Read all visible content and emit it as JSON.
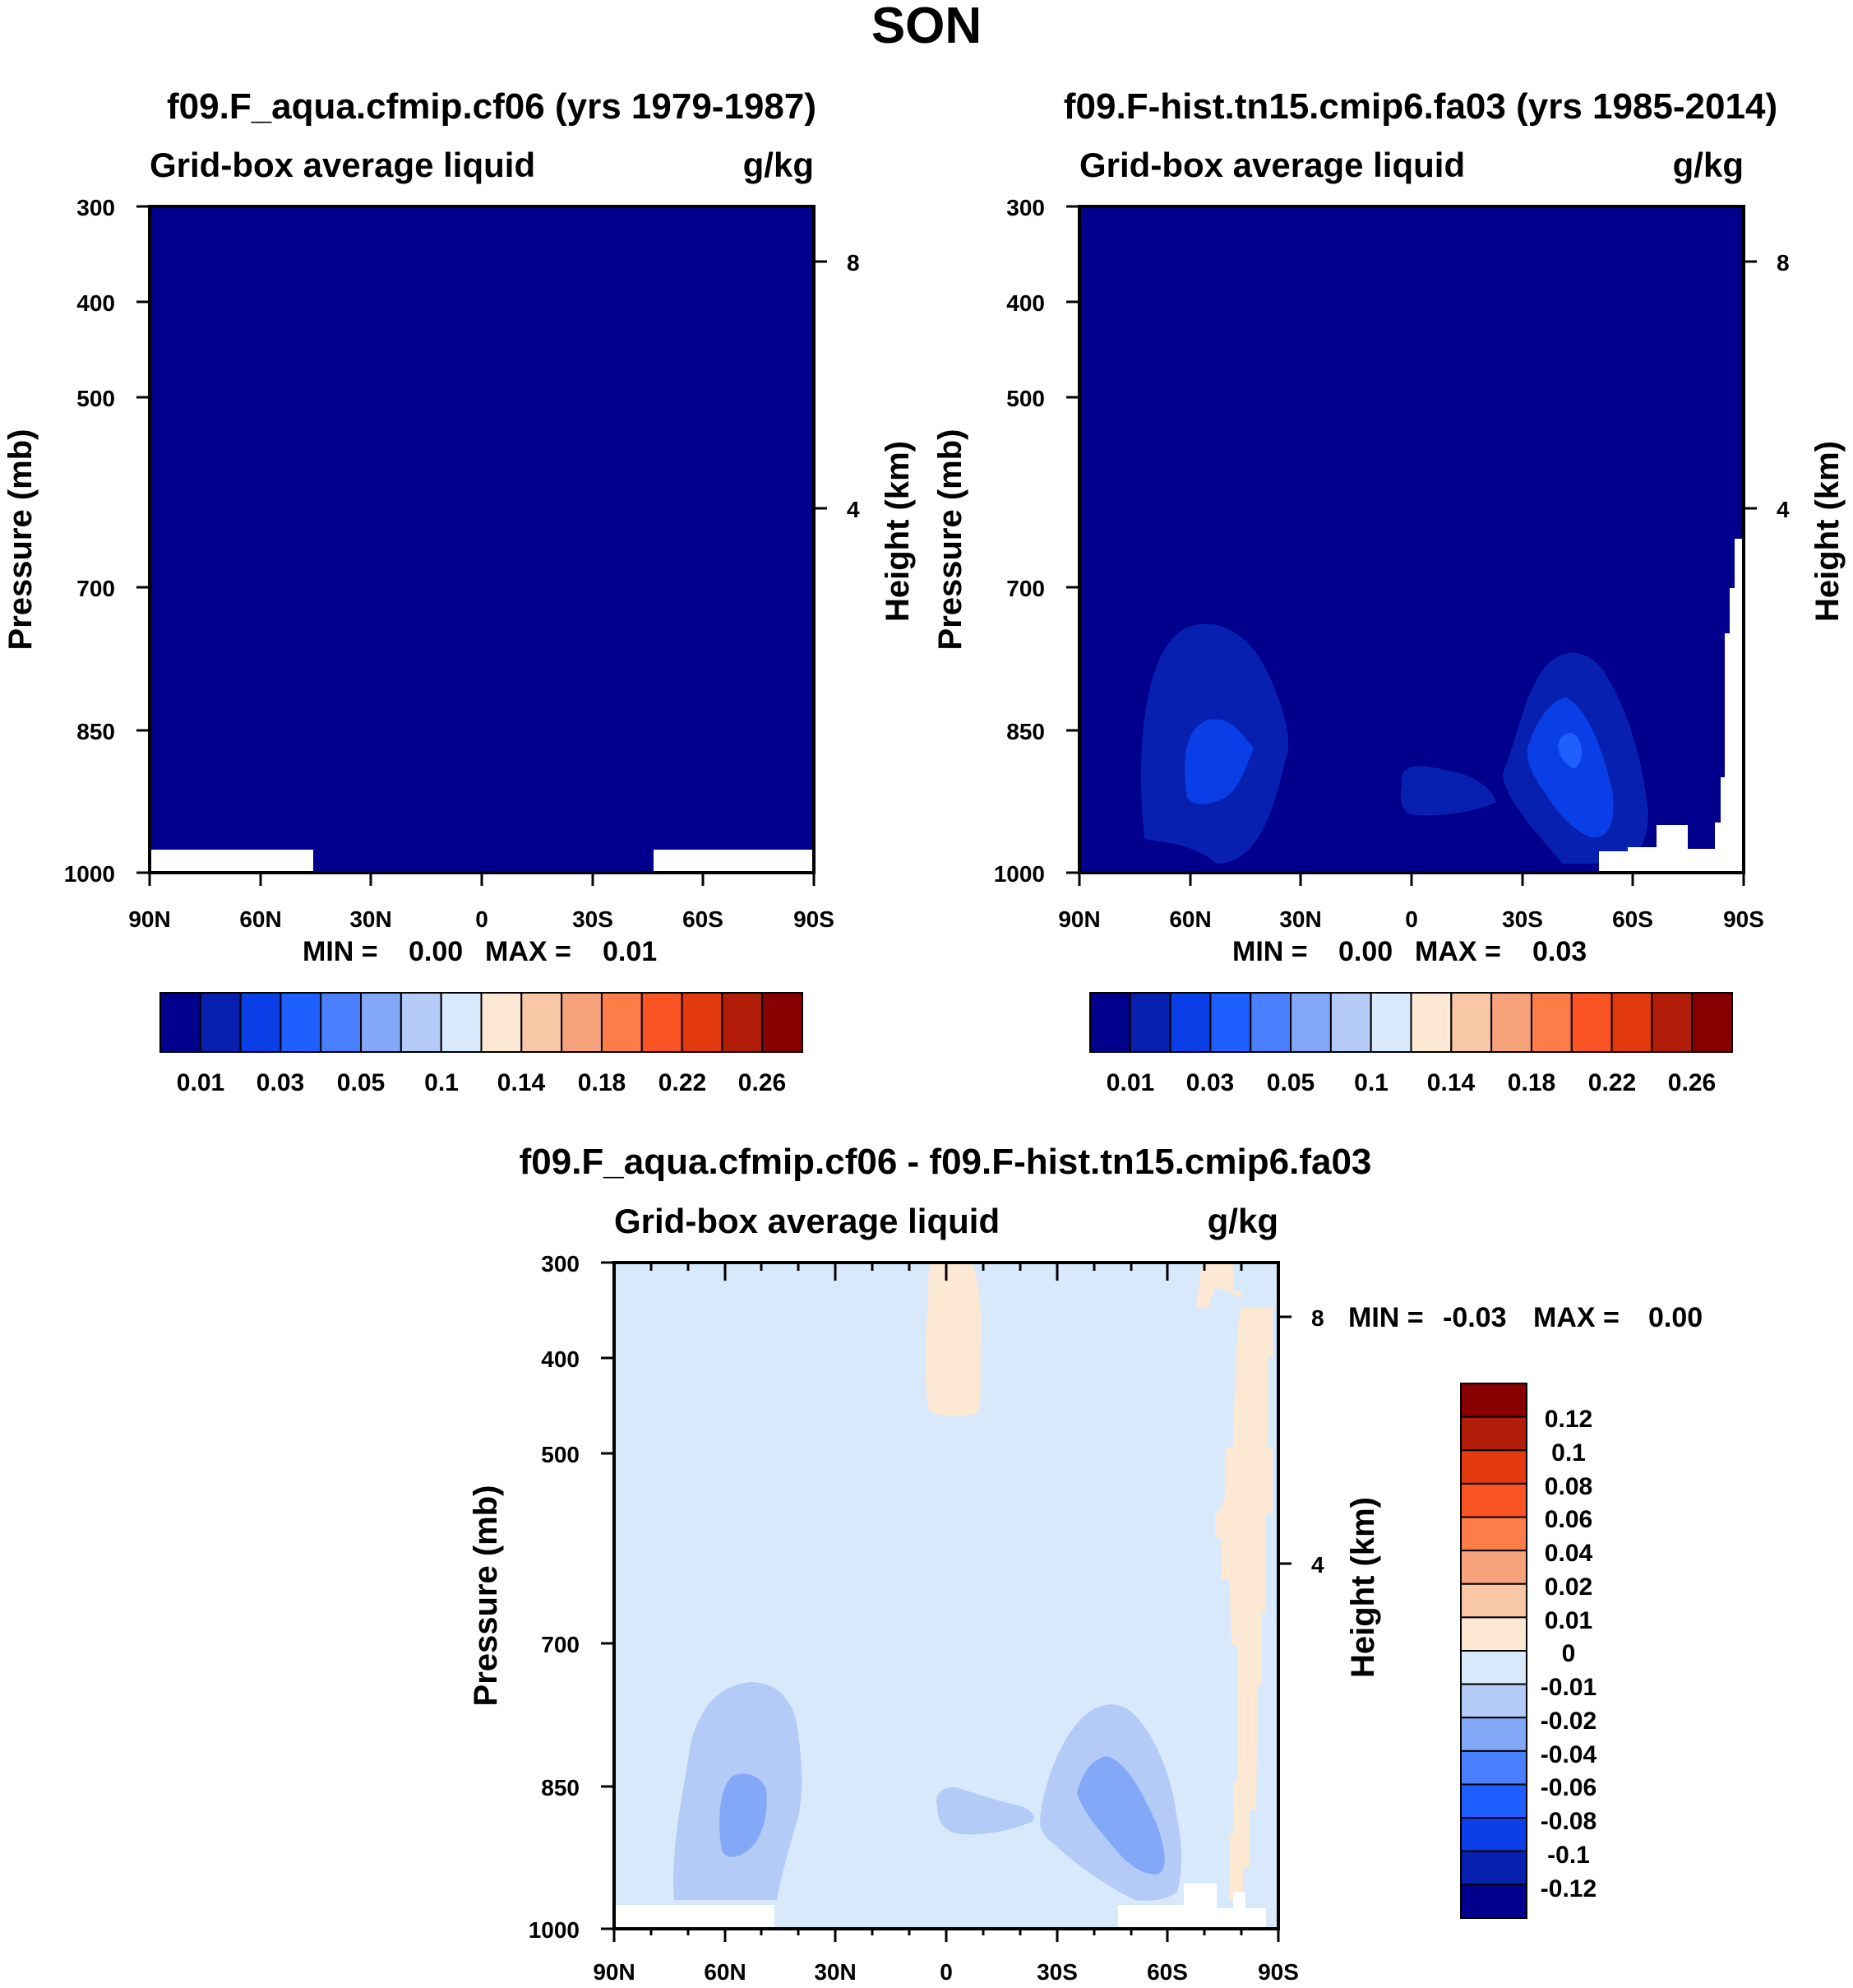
{
  "page_title": "SON",
  "chart_data": [
    {
      "type": "heatmap",
      "id": "panel-a",
      "title": "f09.F_aqua.cfmip.cf06 (yrs 1979-1987)",
      "subtitle_left": "Grid-box average liquid",
      "subtitle_right": "g/kg",
      "ylabel": "Pressure (mb)",
      "ylabel_right": "Height (km)",
      "x_ticks": [
        "90N",
        "60N",
        "30N",
        "0",
        "30S",
        "60S",
        "90S"
      ],
      "y_ticks": [
        "300",
        "400",
        "500",
        "700",
        "850",
        "1000"
      ],
      "y_ticks_right": [
        "8",
        "4"
      ],
      "min_label": "MIN =",
      "min_value": "0.00",
      "max_label": "MAX =",
      "max_value": "0.01",
      "field_range": [
        0.0,
        0.01
      ],
      "colorbar_labels": [
        "0.01",
        "0.03",
        "0.05",
        "0.1",
        "0.14",
        "0.18",
        "0.22",
        "0.26"
      ]
    },
    {
      "type": "heatmap",
      "id": "panel-b",
      "title": "f09.F-hist.tn15.cmip6.fa03 (yrs 1985-2014)",
      "subtitle_left": "Grid-box average liquid",
      "subtitle_right": "g/kg",
      "ylabel": "Pressure (mb)",
      "ylabel_right": "Height (km)",
      "x_ticks": [
        "90N",
        "60N",
        "30N",
        "0",
        "30S",
        "60S",
        "90S"
      ],
      "y_ticks": [
        "300",
        "400",
        "500",
        "700",
        "850",
        "1000"
      ],
      "y_ticks_right": [
        "8",
        "4"
      ],
      "min_label": "MIN =",
      "min_value": "0.00",
      "max_label": "MAX =",
      "max_value": "0.03",
      "field_range": [
        0.0,
        0.03
      ],
      "colorbar_labels": [
        "0.01",
        "0.03",
        "0.05",
        "0.1",
        "0.14",
        "0.18",
        "0.22",
        "0.26"
      ]
    },
    {
      "type": "heatmap",
      "id": "panel-diff",
      "title": "f09.F_aqua.cfmip.cf06 - f09.F-hist.tn15.cmip6.fa03",
      "subtitle_left": "Grid-box average liquid",
      "subtitle_right": "g/kg",
      "ylabel": "Pressure (mb)",
      "ylabel_right": "Height (km)",
      "x_ticks": [
        "90N",
        "60N",
        "30N",
        "0",
        "30S",
        "60S",
        "90S"
      ],
      "y_ticks": [
        "300",
        "400",
        "500",
        "700",
        "850",
        "1000"
      ],
      "y_ticks_right": [
        "8",
        "4"
      ],
      "min_label": "MIN =",
      "min_value": "-0.03",
      "max_label": "MAX =",
      "max_value": "0.00",
      "field_range": [
        -0.03,
        0.0
      ],
      "colorbar_labels": [
        "0.12",
        "0.1",
        "0.08",
        "0.06",
        "0.04",
        "0.02",
        "0.01",
        "0",
        "-0.01",
        "-0.02",
        "-0.04",
        "-0.06",
        "-0.08",
        "-0.1",
        "-0.12"
      ]
    }
  ],
  "colors": {
    "abs_scale": [
      "#00008c",
      "#0820b0",
      "#0a3ee6",
      "#1f5eff",
      "#4a80ff",
      "#84a8f8",
      "#b4cbf7",
      "#d8e9fb",
      "#fde8d4",
      "#f8c7a6",
      "#f6a37c",
      "#fd7c48",
      "#fb5424",
      "#e23a0e",
      "#b11d09",
      "#880000"
    ],
    "diff_scale": [
      "#880000",
      "#b11d09",
      "#e23a0e",
      "#fb5424",
      "#fd7c48",
      "#f6a37c",
      "#f8c7a6",
      "#fde8d4",
      "#d8e9fb",
      "#b4cbf7",
      "#84a8f8",
      "#4a80ff",
      "#1f5eff",
      "#0a3ee6",
      "#0820b0",
      "#00008c"
    ]
  }
}
